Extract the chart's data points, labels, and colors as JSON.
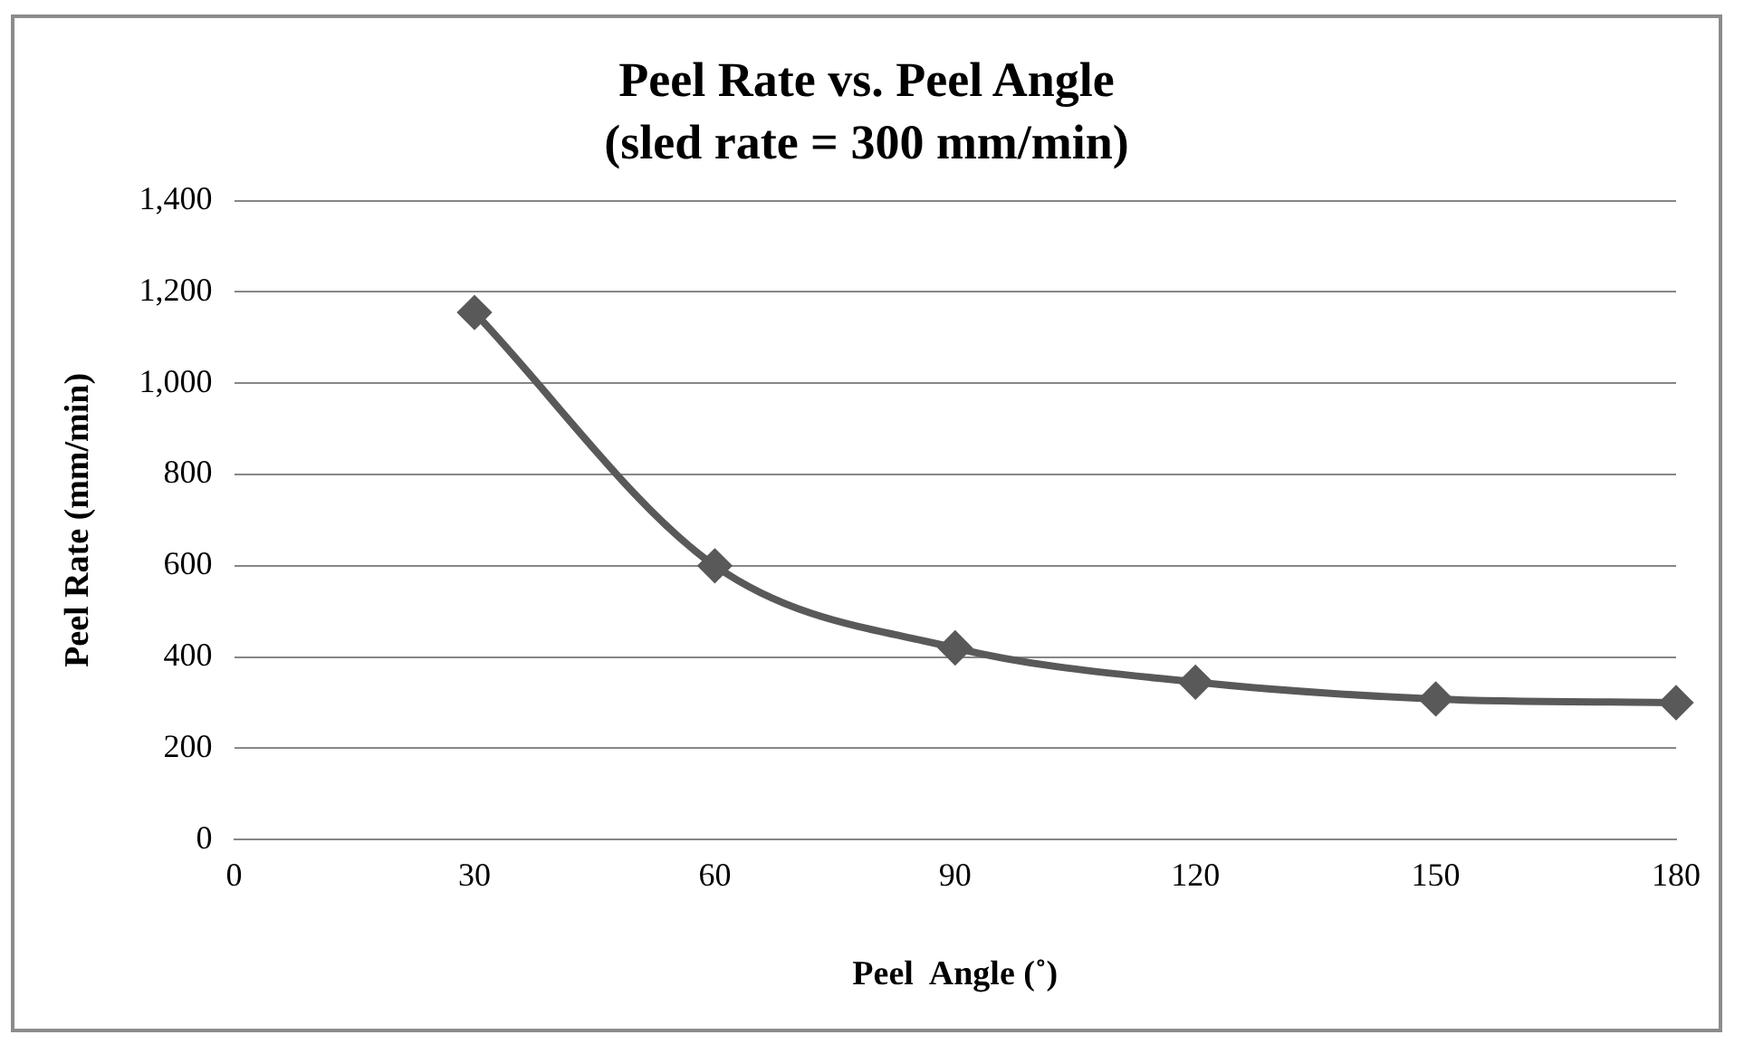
{
  "chart_data": {
    "type": "line",
    "title": "Peel Rate vs. Peel Angle",
    "subtitle": "(sled rate = 300 mm/min)",
    "xlabel": "Peel  Angle (˚)",
    "ylabel": "Peel Rate (mm/min)",
    "x": [
      30,
      60,
      90,
      120,
      150,
      180
    ],
    "series": [
      {
        "color": "#595959",
        "values": [
          1155,
          600,
          420,
          345,
          308,
          300
        ]
      }
    ],
    "xlim": [
      0,
      180
    ],
    "xticks": [
      0,
      30,
      60,
      90,
      120,
      150,
      180
    ],
    "ylim": [
      0,
      1400
    ],
    "yticks": [
      0,
      200,
      400,
      600,
      800,
      {
        "value": 1000,
        "label": "1,000"
      },
      {
        "value": 1200,
        "label": "1,200"
      },
      {
        "value": 1400,
        "label": "1,400"
      }
    ],
    "grid": "y",
    "legend": false,
    "marker": "diamond",
    "line_style": "solid"
  }
}
